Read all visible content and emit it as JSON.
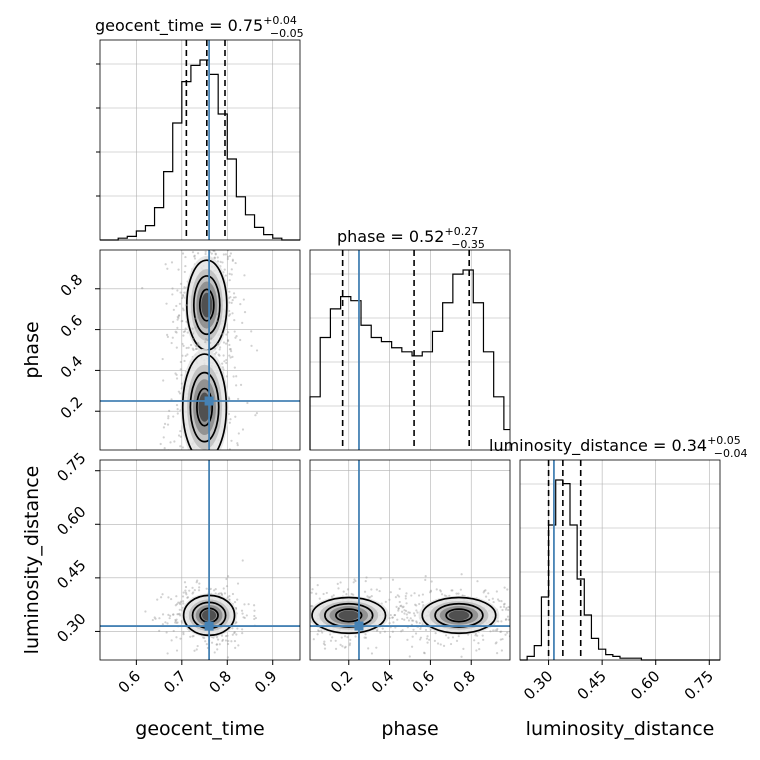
{
  "chart_data": {
    "type": "corner",
    "parameters": [
      "geocent_time",
      "phase",
      "luminosity_distance"
    ],
    "truths": {
      "geocent_time": 0.76,
      "phase": 0.25,
      "luminosity_distance": 0.315
    },
    "colors": {
      "truth": "#4682b4",
      "hist": "#000000",
      "grid": "#b0b0b0",
      "points": "#999999"
    },
    "grid": true,
    "panels": {
      "geocent_time": {
        "title_main": "geocent_time = 0.75",
        "title_sup": "+0.04",
        "title_sub": "−0.05",
        "xlabel": "geocent_time",
        "range": [
          0.52,
          0.96
        ],
        "ticks": [
          "0.6",
          "0.7",
          "0.8",
          "0.9"
        ],
        "tick_values": [
          0.6,
          0.7,
          0.8,
          0.9
        ],
        "quantiles": [
          0.71,
          0.755,
          0.795
        ],
        "hist_edges": [
          0.52,
          0.54,
          0.56,
          0.58,
          0.6,
          0.62,
          0.64,
          0.66,
          0.68,
          0.7,
          0.72,
          0.74,
          0.76,
          0.78,
          0.8,
          0.82,
          0.84,
          0.86,
          0.88,
          0.9,
          0.92,
          0.94,
          0.96
        ],
        "hist_counts": [
          0,
          0,
          1,
          2,
          5,
          8,
          18,
          38,
          65,
          88,
          97,
          100,
          92,
          70,
          45,
          24,
          14,
          7,
          3,
          1,
          0,
          0
        ]
      },
      "phase": {
        "title_main": "phase = 0.52",
        "title_sup": "+0.27",
        "title_sub": "−0.35",
        "xlabel": "phase",
        "ylabel": "phase",
        "range": [
          0.01,
          0.99
        ],
        "ticks": [
          "0.2",
          "0.4",
          "0.6",
          "0.8"
        ],
        "tick_values": [
          0.2,
          0.4,
          0.6,
          0.8
        ],
        "quantiles": [
          0.17,
          0.52,
          0.79
        ],
        "hist_edges": [
          0.01,
          0.06,
          0.11,
          0.16,
          0.21,
          0.26,
          0.31,
          0.36,
          0.41,
          0.46,
          0.51,
          0.56,
          0.61,
          0.66,
          0.71,
          0.76,
          0.81,
          0.86,
          0.91,
          0.96,
          0.99
        ],
        "hist_counts": [
          26,
          55,
          69,
          75,
          73,
          61,
          55,
          53,
          50,
          48,
          46,
          48,
          58,
          72,
          86,
          88,
          72,
          48,
          26,
          10
        ]
      },
      "luminosity_distance": {
        "title_main": "luminosity_distance = 0.34",
        "title_sup": "+0.05",
        "title_sub": "−0.04",
        "xlabel": "luminosity_distance",
        "ylabel": "luminosity_distance",
        "range": [
          0.22,
          0.78
        ],
        "ticks": [
          "0.30",
          "0.45",
          "0.60",
          "0.75"
        ],
        "tick_values": [
          0.3,
          0.45,
          0.6,
          0.75
        ],
        "quantiles": [
          0.3,
          0.34,
          0.39
        ],
        "hist_edges": [
          0.22,
          0.24,
          0.26,
          0.28,
          0.3,
          0.32,
          0.34,
          0.36,
          0.38,
          0.4,
          0.42,
          0.44,
          0.46,
          0.48,
          0.5,
          0.52,
          0.54,
          0.56,
          0.58,
          0.6,
          0.62,
          0.64,
          0.66,
          0.68,
          0.7,
          0.72,
          0.74,
          0.76,
          0.78
        ],
        "hist_counts": [
          0,
          2,
          8,
          35,
          75,
          100,
          98,
          75,
          45,
          25,
          12,
          6,
          3,
          2,
          1,
          1,
          1,
          0,
          0,
          0,
          0,
          0,
          0,
          0,
          0,
          0,
          0,
          0
        ]
      }
    },
    "pairs": [
      {
        "x": "geocent_time",
        "y": "phase",
        "modes": [
          {
            "cx": 0.755,
            "cy": 0.72,
            "sx": 0.022,
            "sy": 0.11,
            "w": 1.0
          },
          {
            "cx": 0.75,
            "cy": 0.22,
            "sx": 0.024,
            "sy": 0.13,
            "w": 0.85
          }
        ]
      },
      {
        "x": "geocent_time",
        "y": "luminosity_distance",
        "modes": [
          {
            "cx": 0.76,
            "cy": 0.345,
            "sx": 0.028,
            "sy": 0.028,
            "w": 1.0
          }
        ]
      },
      {
        "x": "phase",
        "y": "luminosity_distance",
        "modes": [
          {
            "cx": 0.2,
            "cy": 0.345,
            "sx": 0.09,
            "sy": 0.025,
            "w": 0.9
          },
          {
            "cx": 0.74,
            "cy": 0.345,
            "sx": 0.09,
            "sy": 0.025,
            "w": 1.0
          }
        ]
      }
    ]
  }
}
